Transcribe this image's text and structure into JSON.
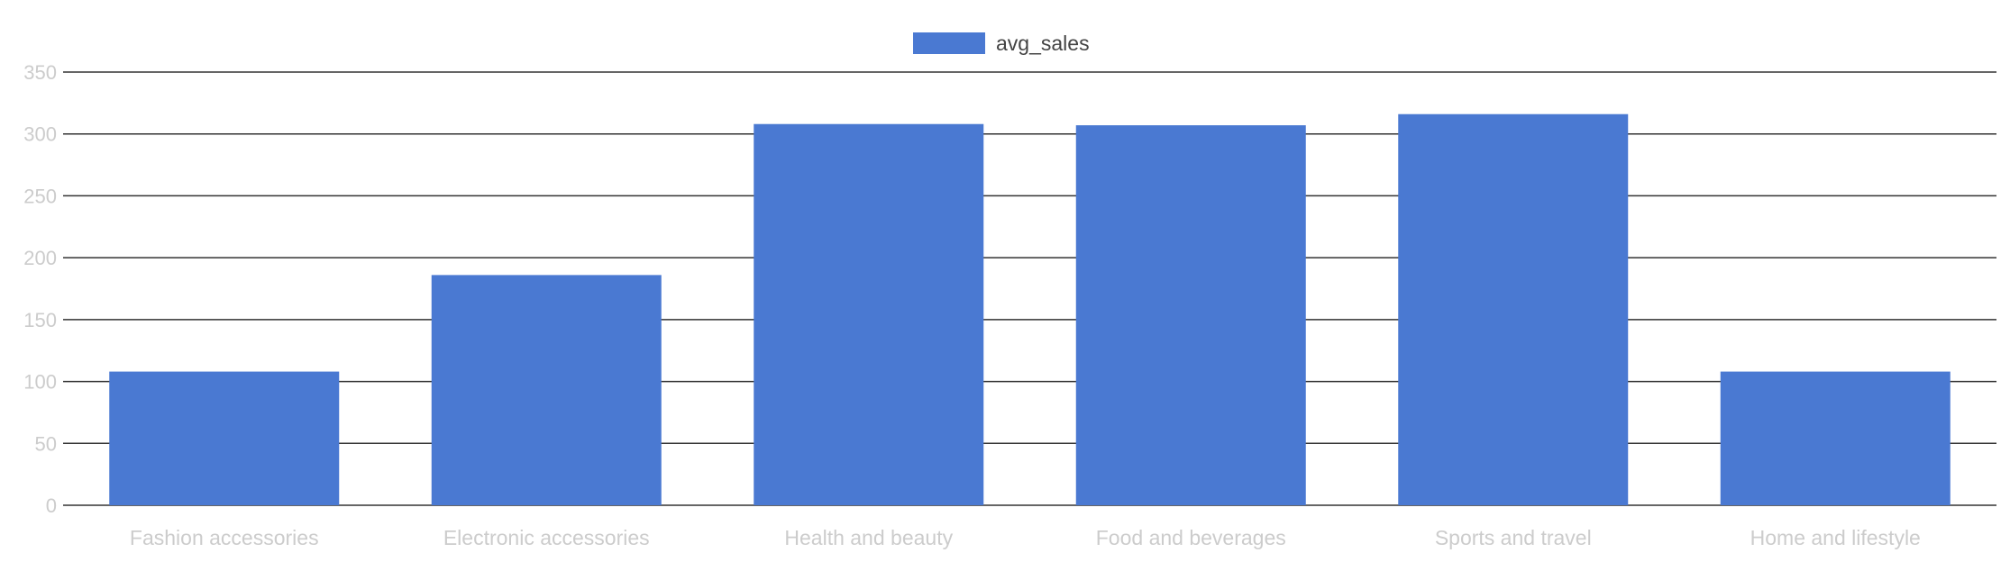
{
  "chart_data": {
    "type": "bar",
    "categories": [
      "Fashion accessories",
      "Electronic accessories",
      "Health and beauty",
      "Food and beverages",
      "Sports and travel",
      "Home and lifestyle"
    ],
    "series": [
      {
        "name": "avg_sales",
        "values": [
          108,
          186,
          308,
          307,
          316,
          108
        ]
      }
    ],
    "yticks": [
      "0",
      "50",
      "100",
      "150",
      "200",
      "250",
      "300",
      "350"
    ],
    "ylim": [
      0,
      350
    ],
    "grid": true,
    "legend_position": "top-center",
    "colors": {
      "bar": "#4a79d2",
      "grid": "#333333",
      "axis_text": "#cccccc",
      "legend_text": "#444444"
    }
  }
}
